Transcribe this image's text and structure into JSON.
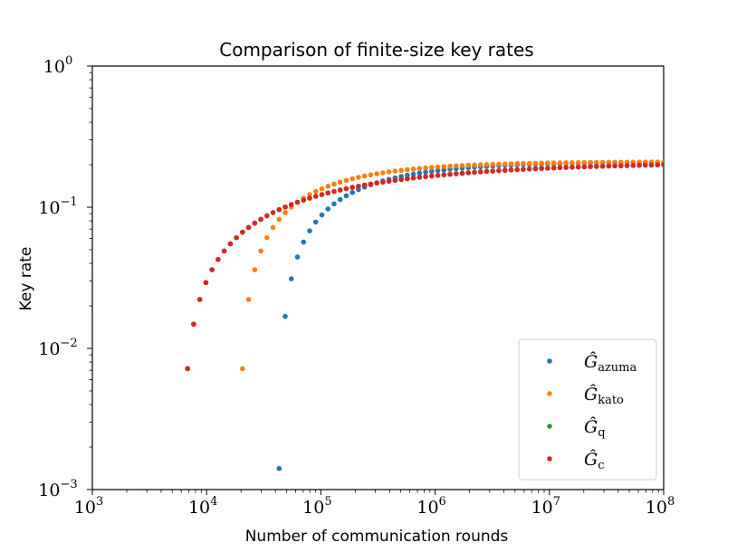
{
  "chart_data": {
    "type": "scatter",
    "title": "Comparison of finite-size key rates",
    "xlabel": "Number of communication rounds",
    "ylabel": "Key rate",
    "xscale": "log",
    "yscale": "log",
    "xlim": [
      1000,
      100000000
    ],
    "ylim": [
      0.001,
      1
    ],
    "x_ticks": [
      {
        "base": "10",
        "exp": "3"
      },
      {
        "base": "10",
        "exp": "4"
      },
      {
        "base": "10",
        "exp": "5"
      },
      {
        "base": "10",
        "exp": "6"
      },
      {
        "base": "10",
        "exp": "7"
      },
      {
        "base": "10",
        "exp": "8"
      }
    ],
    "y_ticks": [
      {
        "base": "10",
        "exp": "−3"
      },
      {
        "base": "10",
        "exp": "−2"
      },
      {
        "base": "10",
        "exp": "−1"
      },
      {
        "base": "10",
        "exp": "0"
      }
    ],
    "grid": false,
    "legend_position": "lower-right",
    "series": [
      {
        "name": "Ĝazuma",
        "symbol": "Ĝ",
        "sub": "azuma",
        "color": "#1f77b4",
        "start_log_x": 4.63,
        "sat": 0.21,
        "gamma": 1.6
      },
      {
        "name": "Ĝkato",
        "symbol": "Ĝ",
        "sub": "kato",
        "color": "#ff7f0e",
        "start_log_x": 4.29,
        "sat": 0.21,
        "gamma": 1.6
      },
      {
        "name": "Ĝq",
        "symbol": "Ĝ",
        "sub": "q",
        "color": "#2ca02c",
        "start_log_x": 3.785,
        "sat": 0.21,
        "gamma": 3.2
      },
      {
        "name": "Ĝc",
        "symbol": "Ĝ",
        "sub": "c",
        "color": "#d62728",
        "start_log_x": 3.785,
        "sat": 0.21,
        "gamma": 3.2
      }
    ],
    "sample_log_x": {
      "min": 3.78,
      "max": 8.0,
      "count": 80
    }
  }
}
